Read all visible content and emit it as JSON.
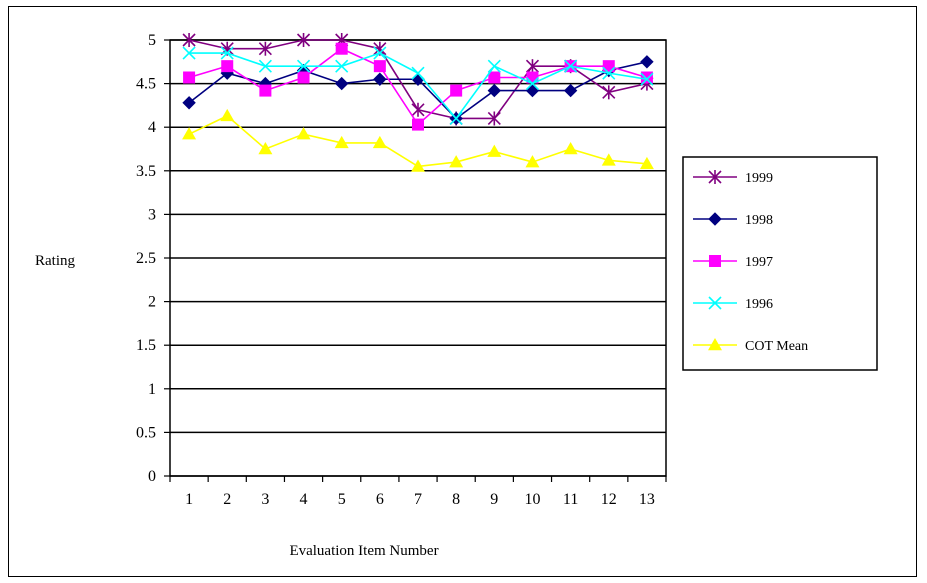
{
  "chart_data": {
    "type": "line",
    "title": "",
    "xlabel": "Evaluation Item Number",
    "ylabel": "Rating",
    "categories": [
      "1",
      "2",
      "3",
      "4",
      "5",
      "6",
      "7",
      "8",
      "9",
      "10",
      "11",
      "12",
      "13"
    ],
    "y_ticks": [
      "0",
      "0.5",
      "1",
      "1.5",
      "2",
      "2.5",
      "3",
      "3.5",
      "4",
      "4.5",
      "5"
    ],
    "ylim": [
      0,
      5
    ],
    "grid": "horizontal",
    "legend_position": "right",
    "series": [
      {
        "name": "1999",
        "color": "#800080",
        "marker": "star",
        "values": [
          5.0,
          4.9,
          4.9,
          5.0,
          5.0,
          4.9,
          4.2,
          4.1,
          4.1,
          4.7,
          4.7,
          4.4,
          4.5
        ]
      },
      {
        "name": "1998",
        "color": "#000080",
        "marker": "diamond",
        "values": [
          4.28,
          4.62,
          4.5,
          4.65,
          4.5,
          4.55,
          4.55,
          4.1,
          4.42,
          4.42,
          4.42,
          4.65,
          4.75
        ]
      },
      {
        "name": "1997",
        "color": "#ff00ff",
        "marker": "square",
        "values": [
          4.57,
          4.7,
          4.42,
          4.57,
          4.9,
          4.7,
          4.03,
          4.42,
          4.57,
          4.57,
          4.7,
          4.7,
          4.57
        ]
      },
      {
        "name": "1996",
        "color": "#00ffff",
        "marker": "x",
        "values": [
          4.85,
          4.85,
          4.7,
          4.7,
          4.7,
          4.85,
          4.62,
          4.1,
          4.7,
          4.5,
          4.7,
          4.62,
          4.55
        ]
      },
      {
        "name": "COT Mean",
        "color": "#ffff00",
        "marker": "triangle",
        "values": [
          3.92,
          4.13,
          3.75,
          3.92,
          3.82,
          3.82,
          3.55,
          3.6,
          3.72,
          3.6,
          3.75,
          3.62,
          3.58
        ]
      }
    ]
  }
}
